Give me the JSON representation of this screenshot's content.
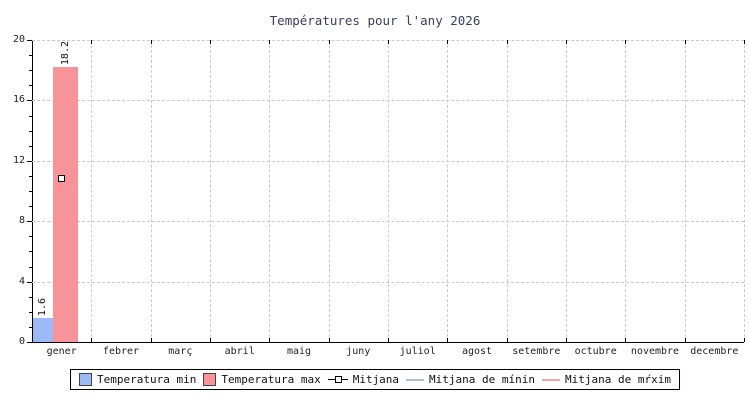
{
  "title": "Températures pour l'any 2026",
  "chart_data": {
    "type": "bar",
    "title": "Températures pour l'any 2026",
    "categories": [
      "gener",
      "febrer",
      "març",
      "abril",
      "maig",
      "juny",
      "juliol",
      "agost",
      "setembre",
      "octubre",
      "novembre",
      "decembre"
    ],
    "series": [
      {
        "name": "Temperatura min",
        "type": "bar",
        "color": "#9bbaf7",
        "values": [
          1.6,
          null,
          null,
          null,
          null,
          null,
          null,
          null,
          null,
          null,
          null,
          null
        ]
      },
      {
        "name": "Temperatura max",
        "type": "bar",
        "color": "#f8939a",
        "values": [
          18.2,
          null,
          null,
          null,
          null,
          null,
          null,
          null,
          null,
          null,
          null,
          null
        ]
      },
      {
        "name": "Mitjana",
        "type": "point",
        "color": "#ffffff",
        "values": [
          10.8,
          null,
          null,
          null,
          null,
          null,
          null,
          null,
          null,
          null,
          null,
          null
        ]
      },
      {
        "name": "Mitjana de mínin",
        "type": "line",
        "color": "#a9c2da",
        "values": []
      },
      {
        "name": "Mitjana de mŕxim",
        "type": "line",
        "color": "#f5a0a5",
        "values": []
      }
    ],
    "xlabel": "",
    "ylabel": "",
    "ylim": [
      0,
      20
    ],
    "y_major_step": 4,
    "y_minor_step": 1,
    "grid": true,
    "legend_position": "bottom"
  },
  "legend": {
    "items": [
      {
        "label": "Temperatura min",
        "swatch": "square",
        "color": "#9bbaf7"
      },
      {
        "label": "Temperatura max",
        "swatch": "square",
        "color": "#f8939a"
      },
      {
        "label": "Mitjana",
        "swatch": "marker",
        "color": "#ffffff"
      },
      {
        "label": "Mitjana de mínin",
        "swatch": "line",
        "color": "#a9c2da"
      },
      {
        "label": "Mitjana de mŕxim",
        "swatch": "line",
        "color": "#f5a0a5"
      }
    ]
  },
  "colors": {
    "temp_min": "#9bbaf7",
    "temp_max": "#f8939a",
    "mitjana_min_line": "#a9c2da",
    "mitjana_max_line": "#f5a0a5",
    "grid": "#c9c9c9",
    "axis": "#000000",
    "title_text": "#3b3b63"
  }
}
